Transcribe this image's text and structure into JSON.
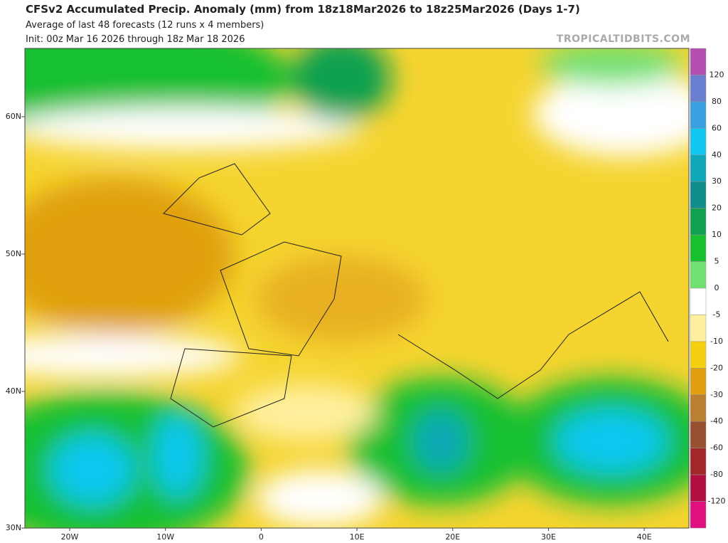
{
  "header": {
    "title": "CFSv2 Accumulated Precip. Anomaly (mm) from 18z18Mar2026 to 18z25Mar2026 (Days 1-7)",
    "subtitle": "Average of last 48 forecasts (12 runs x 4 members)",
    "init": "Init: 00z Mar 16 2026 through 18z Mar 18 2026",
    "watermark": "TROPICALTIDBITS.COM"
  },
  "map": {
    "lat_labels": [
      "60N",
      "50N",
      "40N",
      "30N"
    ],
    "lon_labels": [
      "20W",
      "10W",
      "0",
      "10E",
      "20E",
      "30E",
      "40E"
    ]
  },
  "colorbar": {
    "labels": [
      "120",
      "80",
      "60",
      "40",
      "30",
      "20",
      "10",
      "5",
      "0",
      "-5",
      "-10",
      "-20",
      "-30",
      "-40",
      "-60",
      "-80",
      "-120"
    ],
    "colors": [
      "#b44fb0",
      "#6a7fd0",
      "#3aa0e0",
      "#10c8f0",
      "#10a8b8",
      "#108c8c",
      "#10a050",
      "#18c030",
      "#70e070",
      "#ffffff",
      "#fff0a0",
      "#f5d010",
      "#e0a010",
      "#b88030",
      "#985030",
      "#a02828",
      "#b01040",
      "#e01080"
    ]
  }
}
